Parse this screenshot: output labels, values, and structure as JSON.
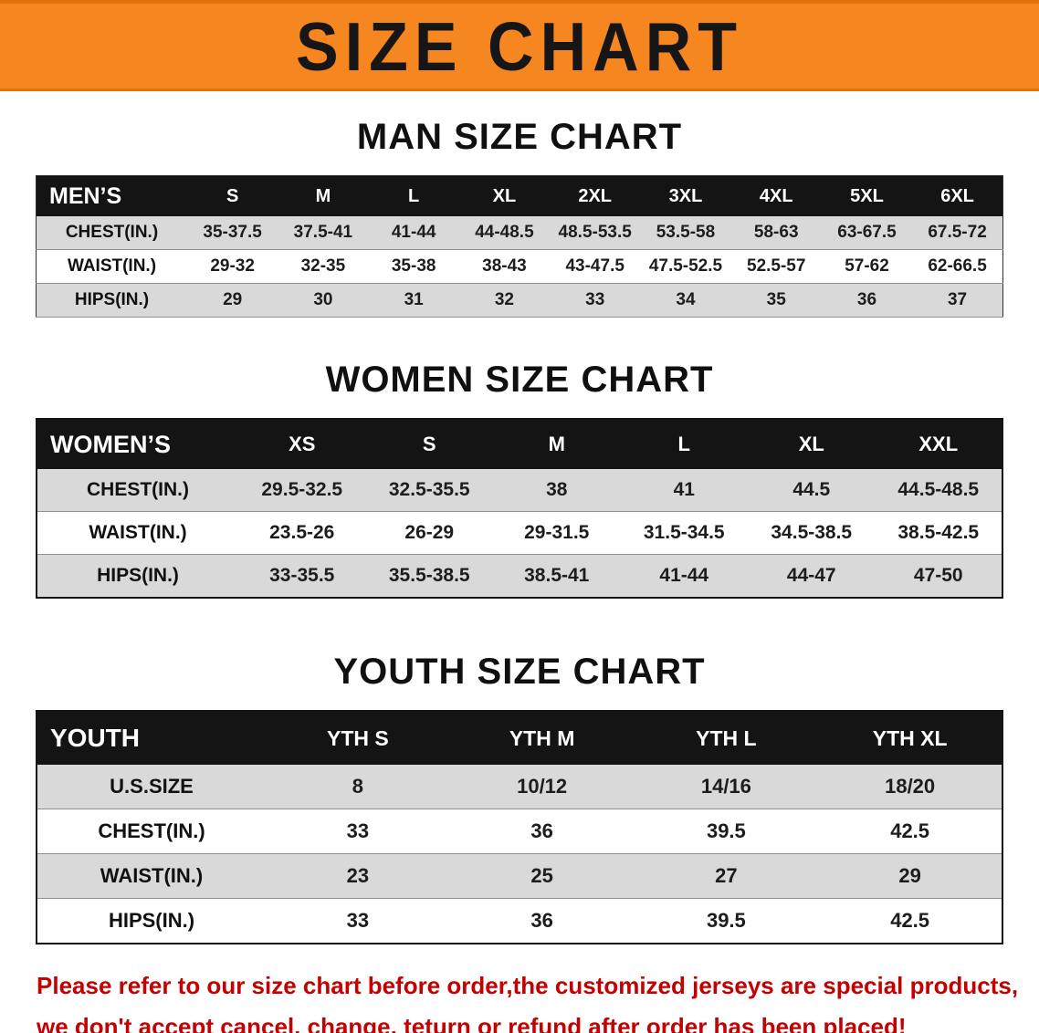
{
  "banner": {
    "title": "SIZE CHART"
  },
  "colors": {
    "banner_bg": "#f6861f",
    "banner_edge": "#e1720a",
    "header_bg": "#141414",
    "row_alt": "#d9d9d9",
    "note_red": "#c40000"
  },
  "sections": [
    {
      "id": "men",
      "title": "MAN SIZE CHART",
      "table": {
        "header": [
          "MEN’S",
          "S",
          "M",
          "L",
          "XL",
          "2XL",
          "3XL",
          "4XL",
          "5XL",
          "6XL"
        ],
        "rows": [
          [
            "CHEST(IN.)",
            "35-37.5",
            "37.5-41",
            "41-44",
            "44-48.5",
            "48.5-53.5",
            "53.5-58",
            "58-63",
            "63-67.5",
            "67.5-72"
          ],
          [
            "WAIST(IN.)",
            "29-32",
            "32-35",
            "35-38",
            "38-43",
            "43-47.5",
            "47.5-52.5",
            "52.5-57",
            "57-62",
            "62-66.5"
          ],
          [
            "HIPS(IN.)",
            "29",
            "30",
            "31",
            "32",
            "33",
            "34",
            "35",
            "36",
            "37"
          ]
        ]
      }
    },
    {
      "id": "women",
      "title": "WOMEN SIZE CHART",
      "table": {
        "header": [
          "WOMEN’S",
          "XS",
          "S",
          "M",
          "L",
          "XL",
          "XXL"
        ],
        "rows": [
          [
            "CHEST(IN.)",
            "29.5-32.5",
            "32.5-35.5",
            "38",
            "41",
            "44.5",
            "44.5-48.5"
          ],
          [
            "WAIST(IN.)",
            "23.5-26",
            "26-29",
            "29-31.5",
            "31.5-34.5",
            "34.5-38.5",
            "38.5-42.5"
          ],
          [
            "HIPS(IN.)",
            "33-35.5",
            "35.5-38.5",
            "38.5-41",
            "41-44",
            "44-47",
            "47-50"
          ]
        ]
      }
    },
    {
      "id": "youth",
      "title": "YOUTH SIZE CHART",
      "table": {
        "header": [
          "YOUTH",
          "YTH S",
          "YTH M",
          "YTH L",
          "YTH XL"
        ],
        "rows": [
          [
            "U.S.SIZE",
            "8",
            "10/12",
            "14/16",
            "18/20"
          ],
          [
            "CHEST(IN.)",
            "33",
            "36",
            "39.5",
            "42.5"
          ],
          [
            "WAIST(IN.)",
            "23",
            "25",
            "27",
            "29"
          ],
          [
            "HIPS(IN.)",
            "33",
            "36",
            "39.5",
            "42.5"
          ]
        ]
      }
    }
  ],
  "note": {
    "line1": "Please refer to our size chart before order,the customized jerseys are special products,",
    "line2": "we don't accept cancel, change, teturn or refund after order has been placed!"
  }
}
